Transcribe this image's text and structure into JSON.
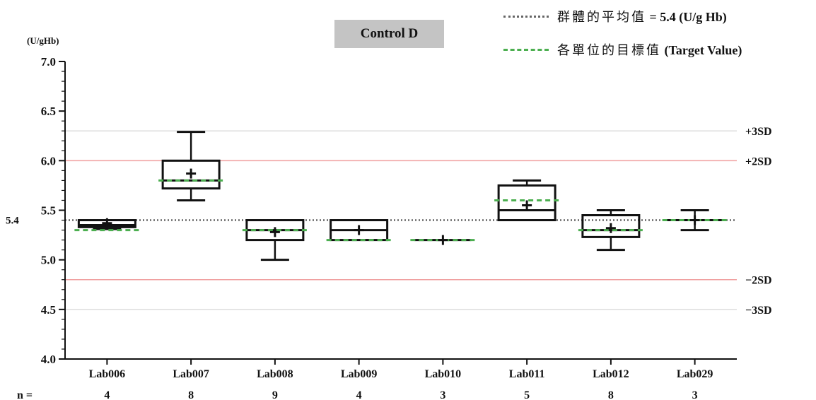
{
  "chart_data": {
    "type": "box",
    "title": "Control D",
    "ylabel": "(U/gHb)",
    "ylim": [
      4.0,
      7.0
    ],
    "yticks": [
      "4.0",
      "4.5",
      "5.0",
      "5.5",
      "6.0",
      "6.5",
      "7.0"
    ],
    "mean": {
      "value": 5.4,
      "label": "5.4"
    },
    "ref_lines": [
      {
        "label": "+3SD",
        "value": 6.3,
        "color": "#dddddd"
      },
      {
        "label": "+2SD",
        "value": 6.0,
        "color": "#f0a0a0"
      },
      {
        "label": "−2SD",
        "value": 4.8,
        "color": "#f0a0a0"
      },
      {
        "label": "−3SD",
        "value": 4.5,
        "color": "#dddddd"
      }
    ],
    "n_label": "n =",
    "boxes": [
      {
        "category": "Lab006",
        "n": "4",
        "min": 5.31,
        "q1": 5.33,
        "median": 5.35,
        "q3": 5.4,
        "max": 5.4,
        "mean": 5.37,
        "target": 5.3
      },
      {
        "category": "Lab007",
        "n": "8",
        "min": 5.6,
        "q1": 5.72,
        "median": 5.8,
        "q3": 6.0,
        "max": 6.29,
        "mean": 5.87,
        "target": 5.8
      },
      {
        "category": "Lab008",
        "n": "9",
        "min": 5.0,
        "q1": 5.2,
        "median": 5.3,
        "q3": 5.4,
        "max": 5.4,
        "mean": 5.28,
        "target": 5.3
      },
      {
        "category": "Lab009",
        "n": "4",
        "min": 5.2,
        "q1": 5.2,
        "median": 5.3,
        "q3": 5.4,
        "max": 5.4,
        "mean": 5.3,
        "target": 5.2
      },
      {
        "category": "Lab010",
        "n": "3",
        "min": 5.2,
        "q1": 5.2,
        "median": 5.2,
        "q3": 5.2,
        "max": 5.2,
        "mean": 5.2,
        "target": 5.2
      },
      {
        "category": "Lab011",
        "n": "5",
        "min": 5.4,
        "q1": 5.4,
        "median": 5.5,
        "q3": 5.75,
        "max": 5.8,
        "mean": 5.55,
        "target": 5.6
      },
      {
        "category": "Lab012",
        "n": "8",
        "min": 5.1,
        "q1": 5.23,
        "median": 5.3,
        "q3": 5.45,
        "max": 5.5,
        "mean": 5.32,
        "target": 5.3
      },
      {
        "category": "Lab029",
        "n": "3",
        "min": 5.3,
        "q1": 5.4,
        "median": 5.4,
        "q3": 5.4,
        "max": 5.5,
        "mean": 5.4,
        "target": 5.4
      }
    ],
    "colors": {
      "mean_line": "#666666",
      "target": "#4caf50",
      "box": "#111111"
    }
  },
  "legend": {
    "mean_cjk": "群體的平均值",
    "mean_rest": " = 5.4 (U/g Hb)",
    "target_cjk": "各單位的目標值",
    "target_rest": " (Target Value)"
  }
}
